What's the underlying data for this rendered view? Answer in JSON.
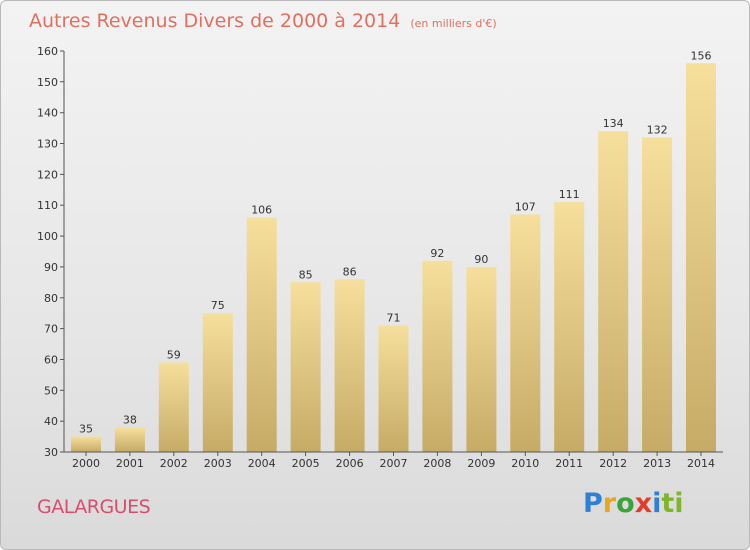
{
  "header": {
    "title": "Autres Revenus Divers de 2000 à 2014",
    "subtitle": "(en milliers d'€)"
  },
  "commune": "GALARGUES",
  "logo": {
    "letters": [
      "P",
      "r",
      "o",
      "x",
      "i",
      "ti"
    ],
    "text": "Proxiti"
  },
  "colors": {
    "bar_light": "#f6df9c",
    "bar_dark": "#c6ab66",
    "title": "#e07060",
    "commune": "#d94e6f"
  },
  "chart_data": {
    "type": "bar",
    "categories": [
      "2000",
      "2001",
      "2002",
      "2003",
      "2004",
      "2005",
      "2006",
      "2007",
      "2008",
      "2009",
      "2010",
      "2011",
      "2012",
      "2013",
      "2014"
    ],
    "values": [
      35,
      38,
      59,
      75,
      106,
      85,
      86,
      71,
      92,
      90,
      107,
      111,
      134,
      132,
      156
    ],
    "ylim": [
      30,
      160
    ],
    "yticks": [
      30,
      40,
      50,
      60,
      70,
      80,
      90,
      100,
      110,
      120,
      130,
      140,
      150,
      160
    ],
    "grid": false
  }
}
